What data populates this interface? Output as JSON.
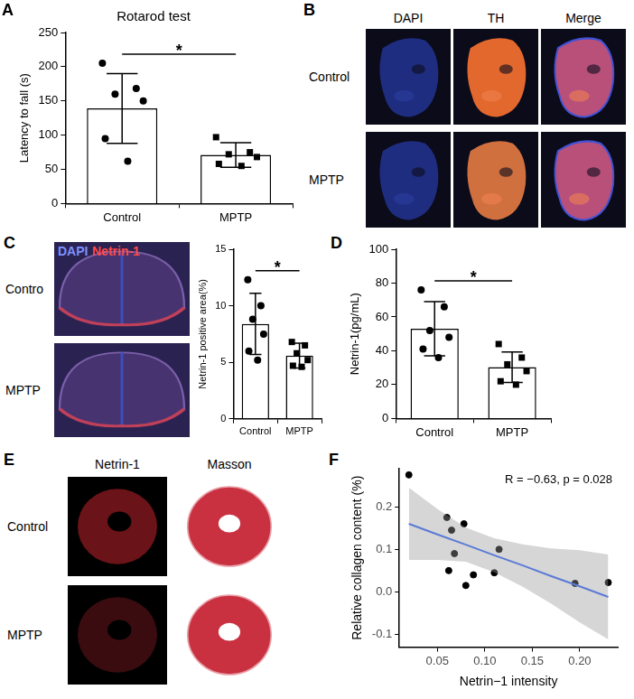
{
  "chart_data": [
    {
      "panel": "A",
      "type": "bar",
      "title": "Rotarod test",
      "y_label": "Latency to fall (s)",
      "categories": [
        "Control",
        "MPTP"
      ],
      "values": [
        139,
        71
      ],
      "errors": [
        51,
        18
      ],
      "points": [
        [
          205,
          168,
          160,
          150,
          95,
          62
        ],
        [
          97,
          75,
          72,
          68,
          58,
          55
        ]
      ],
      "color": "#ffffff",
      "ylim": [
        0,
        250
      ],
      "yticks": [
        0,
        50,
        100,
        150,
        200,
        250
      ],
      "grid": false,
      "annotation": "*"
    },
    {
      "type": "bar",
      "y_label": "Netrin-1 positive area(%)",
      "categories": [
        "Control",
        "MPTP"
      ],
      "values": [
        8.4,
        5.6
      ],
      "errors": [
        2.7,
        1.1
      ],
      "points": [
        [
          12.3,
          10,
          8.8,
          7.5,
          6,
          5.2
        ],
        [
          6.8,
          6.5,
          5.8,
          5.2,
          4.7,
          4.6
        ]
      ],
      "color": "#ffffff",
      "ylim": [
        0,
        15
      ],
      "yticks": [
        0,
        5,
        10,
        15
      ],
      "grid": false,
      "annotation": "*"
    },
    {
      "panel": "D",
      "type": "bar",
      "y_label": "Netrin-1(pg/mL)",
      "categories": [
        "Control",
        "MPTP"
      ],
      "values": [
        53,
        30.3
      ],
      "errors": [
        16,
        9
      ],
      "points": [
        [
          76,
          66,
          52,
          48,
          41,
          36
        ],
        [
          44,
          36,
          32,
          28,
          22,
          20
        ]
      ],
      "color": "#ffffff",
      "ylim": [
        0,
        100
      ],
      "yticks": [
        0,
        20,
        40,
        60,
        80,
        100
      ],
      "grid": false,
      "annotation": "*"
    },
    {
      "panel": "F",
      "type": "scatter",
      "x_label": "Netrin−1 intensity",
      "y_label": "Relative collagen content (%)",
      "annotation": "R = −0.63, p = 0.028",
      "x": [
        0.02,
        0.06,
        0.065,
        0.068,
        0.062,
        0.078,
        0.08,
        0.088,
        0.115,
        0.11,
        0.195,
        0.23
      ],
      "values": [
        0.275,
        0.175,
        0.145,
        0.09,
        0.05,
        0.16,
        0.015,
        0.04,
        0.1,
        0.045,
        0.02,
        0.022
      ],
      "color": "#000000",
      "fit": {
        "color": "#3366ff",
        "x": [
          0.02,
          0.05,
          0.08,
          0.11,
          0.14,
          0.17,
          0.2,
          0.23
        ],
        "y": [
          0.16,
          0.135,
          0.111,
          0.086,
          0.062,
          0.037,
          0.013,
          -0.012
        ],
        "lower": [
          0.075,
          0.075,
          0.071,
          0.046,
          0.012,
          -0.028,
          -0.072,
          -0.112
        ],
        "upper": [
          0.245,
          0.195,
          0.151,
          0.126,
          0.112,
          0.102,
          0.098,
          0.088
        ]
      },
      "xlim": [
        0.01,
        0.24
      ],
      "xticks": [
        0.05,
        {
          "value": 0.1,
          "label": "0.10"
        },
        0.15,
        {
          "value": 0.2,
          "label": "0.20"
        }
      ],
      "ylim": [
        -0.13,
        0.29
      ],
      "yticks": [
        -0.1,
        {
          "value": 0,
          "label": "0.0"
        },
        0.1,
        0.2
      ],
      "grid": false
    }
  ],
  "image_panels": [
    {
      "panel": "B",
      "columns": [
        "DAPI",
        "TH",
        "Merge"
      ],
      "rows": [
        "Control",
        "MPTP"
      ]
    },
    {
      "panel": "C",
      "columns": [
        "DAPI",
        "Netrin-1"
      ],
      "rows": [
        "Contro",
        "MPTP"
      ]
    },
    {
      "panel": "E",
      "columns": [
        "Netrin-1",
        "Masson"
      ],
      "rows": [
        "Control",
        "MPTP"
      ]
    }
  ]
}
